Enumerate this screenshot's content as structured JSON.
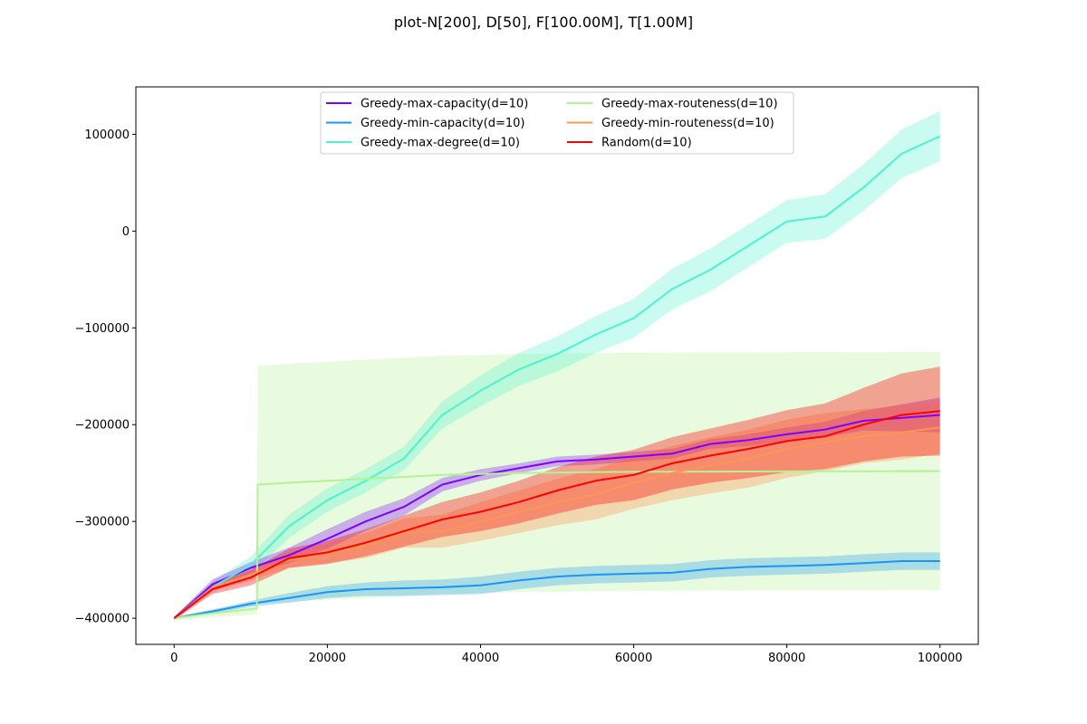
{
  "chart_data": {
    "type": "line",
    "title": "plot-N[200], D[50], F[100.00M], T[1.00M]",
    "xlabel": "",
    "ylabel": "",
    "xlim": [
      -5000,
      105000
    ],
    "ylim": [
      -427000,
      149000
    ],
    "x_ticks": [
      0,
      20000,
      40000,
      60000,
      80000,
      100000
    ],
    "x_tick_labels": [
      "0",
      "20000",
      "40000",
      "60000",
      "80000",
      "100000"
    ],
    "y_ticks": [
      100000,
      0,
      -100000,
      -200000,
      -300000,
      -400000
    ],
    "y_tick_labels": [
      "100000",
      "0",
      "−100000",
      "−200000",
      "−300000",
      "−400000"
    ],
    "legend_position": "upper center",
    "grid": false,
    "error_bands": true,
    "series": [
      {
        "name": "Greedy-max-capacity(d=10)",
        "color": "#8000ff",
        "x": [
          0,
          5000,
          10000,
          15000,
          20000,
          25000,
          30000,
          35000,
          40000,
          45000,
          50000,
          55000,
          60000,
          65000,
          70000,
          75000,
          80000,
          85000,
          90000,
          95000,
          100000
        ],
        "y": [
          -400000,
          -365000,
          -348000,
          -335000,
          -318000,
          -300000,
          -285000,
          -262000,
          -252000,
          -245000,
          -238000,
          -236000,
          -233000,
          -230000,
          -220000,
          -216000,
          -210000,
          -205000,
          -196000,
          -193000,
          -190000
        ],
        "err": [
          1500,
          5000,
          6000,
          8000,
          10000,
          10000,
          9000,
          7000,
          6000,
          5000,
          5000,
          5000,
          5000,
          5000,
          5000,
          6000,
          7000,
          8000,
          10000,
          14000,
          18000
        ]
      },
      {
        "name": "Greedy-min-capacity(d=10)",
        "color": "#1996f3",
        "x": [
          0,
          5000,
          10000,
          15000,
          20000,
          25000,
          30000,
          35000,
          40000,
          45000,
          50000,
          55000,
          60000,
          65000,
          70000,
          75000,
          80000,
          85000,
          90000,
          95000,
          100000
        ],
        "y": [
          -400000,
          -393000,
          -385000,
          -379000,
          -373000,
          -370000,
          -369000,
          -368000,
          -366000,
          -361000,
          -357000,
          -355000,
          -354000,
          -353000,
          -349000,
          -347000,
          -346000,
          -345000,
          -343000,
          -341000,
          -341000
        ],
        "err": [
          1000,
          2000,
          3000,
          5000,
          6000,
          7000,
          8000,
          8000,
          9000,
          9000,
          9000,
          9000,
          9000,
          9000,
          9000,
          9000,
          9000,
          9000,
          9000,
          9000,
          9000
        ]
      },
      {
        "name": "Greedy-max-degree(d=10)",
        "color": "#4df3ce",
        "x": [
          0,
          5000,
          10000,
          15000,
          20000,
          25000,
          30000,
          35000,
          40000,
          45000,
          50000,
          55000,
          60000,
          65000,
          70000,
          75000,
          80000,
          85000,
          90000,
          95000,
          100000
        ],
        "y": [
          -400000,
          -368000,
          -345000,
          -305000,
          -278000,
          -258000,
          -235000,
          -190000,
          -165000,
          -143000,
          -127000,
          -107000,
          -90000,
          -60000,
          -40000,
          -15000,
          10000,
          15000,
          45000,
          80000,
          98000
        ],
        "err": [
          1500,
          6000,
          9000,
          12000,
          12000,
          12000,
          12000,
          14000,
          16000,
          17000,
          18000,
          19000,
          20000,
          21000,
          22000,
          22000,
          22000,
          23000,
          24000,
          25000,
          26000
        ]
      },
      {
        "name": "Greedy-max-routeness(d=10)",
        "color": "#b2f396",
        "x": [
          0,
          5000,
          10800,
          10900,
          15000,
          20000,
          25000,
          30000,
          35000,
          40000,
          45000,
          50000,
          55000,
          60000,
          65000,
          70000,
          75000,
          80000,
          85000,
          90000,
          95000,
          100000
        ],
        "y": [
          -400000,
          -395000,
          -390000,
          -262000,
          -260000,
          -258000,
          -256000,
          -254000,
          -252000,
          -251000,
          -250000,
          -249500,
          -249000,
          -248800,
          -248600,
          -248500,
          -248400,
          -248300,
          -248200,
          -248100,
          -248000,
          -248000
        ],
        "err": [
          2000,
          4000,
          6000,
          123000,
          123000,
          123000,
          123000,
          123000,
          123000,
          123000,
          123000,
          123000,
          123000,
          123000,
          123000,
          123000,
          123000,
          123000,
          123000,
          123000,
          123000,
          123000
        ]
      },
      {
        "name": "Greedy-min-routeness(d=10)",
        "color": "#ff964f",
        "x": [
          0,
          5000,
          10000,
          15000,
          20000,
          25000,
          30000,
          35000,
          40000,
          45000,
          50000,
          55000,
          60000,
          65000,
          70000,
          75000,
          80000,
          85000,
          90000,
          95000,
          100000
        ],
        "y": [
          -400000,
          -368000,
          -355000,
          -340000,
          -333000,
          -325000,
          -312000,
          -310000,
          -300000,
          -290000,
          -280000,
          -272000,
          -260000,
          -250000,
          -242000,
          -235000,
          -225000,
          -218000,
          -212000,
          -208000,
          -203000
        ],
        "err": [
          1500,
          4000,
          6000,
          8000,
          10000,
          13000,
          15000,
          17000,
          20000,
          22000,
          24000,
          26000,
          27000,
          28000,
          29000,
          30000,
          30000,
          30000,
          28000,
          28000,
          27000
        ]
      },
      {
        "name": "Random(d=10)",
        "color": "#ff0000",
        "x": [
          0,
          5000,
          10000,
          15000,
          20000,
          25000,
          30000,
          35000,
          40000,
          45000,
          50000,
          55000,
          60000,
          65000,
          70000,
          75000,
          80000,
          85000,
          90000,
          95000,
          100000
        ],
        "y": [
          -400000,
          -370000,
          -358000,
          -338000,
          -332000,
          -322000,
          -310000,
          -298000,
          -290000,
          -280000,
          -268000,
          -258000,
          -252000,
          -240000,
          -232000,
          -225000,
          -217000,
          -212000,
          -200000,
          -190000,
          -186000
        ],
        "err": [
          1500,
          5000,
          8000,
          10000,
          12000,
          14000,
          16000,
          18000,
          20000,
          22000,
          24000,
          25000,
          26000,
          27000,
          28000,
          30000,
          32000,
          34000,
          38000,
          43000,
          46000
        ]
      }
    ]
  }
}
